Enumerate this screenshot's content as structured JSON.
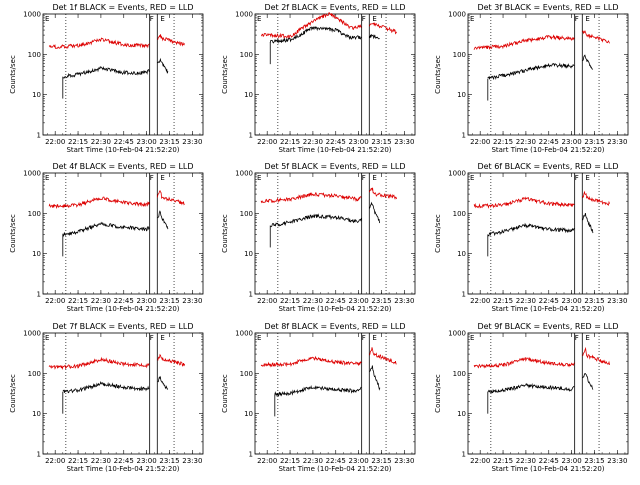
{
  "figure": {
    "xlabel": "Start Time (10-Feb-04 21:52:20)",
    "ylabel": "Counts/sec",
    "colors": {
      "events": "#000000",
      "lld": "#dd0000",
      "axes": "#000000"
    }
  },
  "chart_data": [
    {
      "type": "line",
      "title": "Det 1f BLACK = Events, RED = LLD",
      "xlabel": "Start Time (10-Feb-04 21:52:20)",
      "ylabel": "Counts/sec",
      "x_tick_labels": [
        "22:00",
        "22:15",
        "22:30",
        "22:45",
        "23:00",
        "23:15",
        "23:30"
      ],
      "y_tick_labels": [
        "1",
        "10",
        "100",
        "1000"
      ],
      "y_scale": "log",
      "ylim": [
        1,
        1000
      ],
      "annotations": [
        "E",
        "F",
        "E"
      ],
      "series": [
        {
          "name": "BLACK = Events",
          "color": "#000000",
          "x": [
            "22:05",
            "22:15",
            "22:30",
            "22:45",
            "23:00",
            "23:06",
            "23:09",
            "23:10",
            "23:14"
          ],
          "y": [
            28,
            32,
            45,
            35,
            35,
            50,
            70,
            60,
            35
          ]
        },
        {
          "name": "RED = LLD",
          "color": "#dd0000",
          "x": [
            "21:56",
            "22:15",
            "22:30",
            "22:45",
            "23:00",
            "23:06",
            "23:09",
            "23:10",
            "23:25"
          ],
          "y": [
            150,
            165,
            230,
            175,
            160,
            200,
            290,
            250,
            175
          ]
        }
      ]
    },
    {
      "type": "line",
      "title": "Det 2f BLACK = Events, RED = LLD",
      "xlabel": "Start Time (10-Feb-04 21:52:20)",
      "ylabel": "Counts/sec",
      "x_tick_labels": [
        "22:00",
        "22:15",
        "22:30",
        "22:45",
        "23:00",
        "23:15",
        "23:30"
      ],
      "y_tick_labels": [
        "1",
        "10",
        "100",
        "1000"
      ],
      "y_scale": "log",
      "ylim": [
        1,
        1000
      ],
      "annotations": [
        "E",
        "F",
        "E"
      ],
      "series": [
        {
          "name": "BLACK = Events",
          "color": "#000000",
          "x": [
            "22:02",
            "22:15",
            "22:30",
            "22:45",
            "22:55",
            "23:06",
            "23:09",
            "23:10",
            "23:14"
          ],
          "y": [
            200,
            230,
            450,
            400,
            260,
            270,
            290,
            280,
            250
          ]
        },
        {
          "name": "RED = LLD",
          "color": "#dd0000",
          "x": [
            "21:56",
            "22:15",
            "22:30",
            "22:40",
            "22:45",
            "22:55",
            "23:06",
            "23:09",
            "23:25"
          ],
          "y": [
            300,
            280,
            650,
            1000,
            850,
            450,
            500,
            600,
            350
          ]
        }
      ]
    },
    {
      "type": "line",
      "title": "Det 3f BLACK = Events, RED = LLD",
      "xlabel": "Start Time (10-Feb-04 21:52:20)",
      "ylabel": "Counts/sec",
      "x_tick_labels": [
        "22:00",
        "22:15",
        "22:30",
        "22:45",
        "23:00",
        "23:15",
        "23:30"
      ],
      "y_tick_labels": [
        "1",
        "10",
        "100",
        "1000"
      ],
      "y_scale": "log",
      "ylim": [
        1,
        1000
      ],
      "annotations": [
        "E",
        "F",
        "E"
      ],
      "series": [
        {
          "name": "BLACK = Events",
          "color": "#000000",
          "x": [
            "22:05",
            "22:15",
            "22:30",
            "22:45",
            "23:00",
            "23:06",
            "23:09",
            "23:10",
            "23:14"
          ],
          "y": [
            25,
            30,
            40,
            55,
            50,
            65,
            90,
            70,
            45
          ]
        },
        {
          "name": "RED = LLD",
          "color": "#dd0000",
          "x": [
            "21:56",
            "22:15",
            "22:30",
            "22:45",
            "23:00",
            "23:06",
            "23:09",
            "23:10",
            "23:25"
          ],
          "y": [
            140,
            160,
            220,
            270,
            240,
            320,
            400,
            300,
            200
          ]
        }
      ]
    },
    {
      "type": "line",
      "title": "Det 4f BLACK = Events, RED = LLD",
      "xlabel": "Start Time (10-Feb-04 21:52:20)",
      "ylabel": "Counts/sec",
      "x_tick_labels": [
        "22:00",
        "22:15",
        "22:30",
        "22:45",
        "23:00",
        "23:15",
        "23:30"
      ],
      "y_tick_labels": [
        "1",
        "10",
        "100",
        "1000"
      ],
      "y_scale": "log",
      "ylim": [
        1,
        1000
      ],
      "annotations": [
        "E",
        "F",
        "E"
      ],
      "series": [
        {
          "name": "BLACK = Events",
          "color": "#000000",
          "x": [
            "22:05",
            "22:15",
            "22:30",
            "22:45",
            "23:00",
            "23:06",
            "23:09",
            "23:10",
            "23:14"
          ],
          "y": [
            30,
            35,
            55,
            45,
            40,
            60,
            110,
            80,
            40
          ]
        },
        {
          "name": "RED = LLD",
          "color": "#dd0000",
          "x": [
            "21:56",
            "22:15",
            "22:30",
            "22:45",
            "23:00",
            "23:06",
            "23:09",
            "23:10",
            "23:25"
          ],
          "y": [
            150,
            160,
            240,
            185,
            160,
            220,
            350,
            250,
            175
          ]
        }
      ]
    },
    {
      "type": "line",
      "title": "Det 5f BLACK = Events, RED = LLD",
      "xlabel": "Start Time (10-Feb-04 21:52:20)",
      "ylabel": "Counts/sec",
      "x_tick_labels": [
        "22:00",
        "22:15",
        "22:30",
        "22:45",
        "23:00",
        "23:15",
        "23:30"
      ],
      "y_tick_labels": [
        "1",
        "10",
        "100",
        "1000"
      ],
      "y_scale": "log",
      "ylim": [
        1,
        1000
      ],
      "annotations": [
        "E",
        "F",
        "E"
      ],
      "series": [
        {
          "name": "BLACK = Events",
          "color": "#000000",
          "x": [
            "22:02",
            "22:15",
            "22:30",
            "22:45",
            "23:00",
            "23:06",
            "23:09",
            "23:10",
            "23:14"
          ],
          "y": [
            50,
            60,
            85,
            80,
            60,
            110,
            180,
            120,
            60
          ]
        },
        {
          "name": "RED = LLD",
          "color": "#dd0000",
          "x": [
            "21:56",
            "22:15",
            "22:30",
            "22:45",
            "23:00",
            "23:06",
            "23:09",
            "23:10",
            "23:25"
          ],
          "y": [
            200,
            220,
            300,
            270,
            220,
            300,
            420,
            300,
            250
          ]
        }
      ]
    },
    {
      "type": "line",
      "title": "Det 6f BLACK = Events, RED = LLD",
      "xlabel": "Start Time (10-Feb-04 21:52:20)",
      "ylabel": "Counts/sec",
      "x_tick_labels": [
        "22:00",
        "22:15",
        "22:30",
        "22:45",
        "23:00",
        "23:15",
        "23:30"
      ],
      "y_tick_labels": [
        "1",
        "10",
        "100",
        "1000"
      ],
      "y_scale": "log",
      "ylim": [
        1,
        1000
      ],
      "annotations": [
        "E",
        "F",
        "E"
      ],
      "series": [
        {
          "name": "BLACK = Events",
          "color": "#000000",
          "x": [
            "22:05",
            "22:15",
            "22:30",
            "22:45",
            "23:00",
            "23:06",
            "23:09",
            "23:10",
            "23:14"
          ],
          "y": [
            30,
            35,
            50,
            40,
            38,
            55,
            100,
            70,
            35
          ]
        },
        {
          "name": "RED = LLD",
          "color": "#dd0000",
          "x": [
            "21:56",
            "22:15",
            "22:30",
            "22:45",
            "23:00",
            "23:06",
            "23:09",
            "23:10",
            "23:25"
          ],
          "y": [
            150,
            160,
            230,
            175,
            160,
            220,
            330,
            240,
            170
          ]
        }
      ]
    },
    {
      "type": "line",
      "title": "Det 7f BLACK = Events, RED = LLD",
      "xlabel": "Start Time (10-Feb-04 21:52:20)",
      "ylabel": "Counts/sec",
      "x_tick_labels": [
        "22:00",
        "22:15",
        "22:30",
        "22:45",
        "23:00",
        "23:15",
        "23:30"
      ],
      "y_tick_labels": [
        "1",
        "10",
        "100",
        "1000"
      ],
      "y_scale": "log",
      "ylim": [
        1,
        1000
      ],
      "annotations": [
        "E",
        "F",
        "E"
      ],
      "series": [
        {
          "name": "BLACK = Events",
          "color": "#000000",
          "x": [
            "22:05",
            "22:15",
            "22:30",
            "22:45",
            "23:00",
            "23:06",
            "23:09",
            "23:10",
            "23:14"
          ],
          "y": [
            35,
            38,
            55,
            45,
            40,
            55,
            80,
            60,
            40
          ]
        },
        {
          "name": "RED = LLD",
          "color": "#dd0000",
          "x": [
            "21:56",
            "22:15",
            "22:30",
            "22:45",
            "23:00",
            "23:06",
            "23:09",
            "23:10",
            "23:25"
          ],
          "y": [
            140,
            150,
            220,
            170,
            155,
            200,
            280,
            230,
            165
          ]
        }
      ]
    },
    {
      "type": "line",
      "title": "Det 8f BLACK = Events, RED = LLD",
      "xlabel": "Start Time (10-Feb-04 21:52:20)",
      "ylabel": "Counts/sec",
      "x_tick_labels": [
        "22:00",
        "22:15",
        "22:30",
        "22:45",
        "23:00",
        "23:15",
        "23:30"
      ],
      "y_tick_labels": [
        "1",
        "10",
        "100",
        "1000"
      ],
      "y_scale": "log",
      "ylim": [
        1,
        1000
      ],
      "annotations": [
        "E",
        "F",
        "E"
      ],
      "series": [
        {
          "name": "BLACK = Events",
          "color": "#000000",
          "x": [
            "22:05",
            "22:15",
            "22:30",
            "22:45",
            "23:00",
            "23:06",
            "23:09",
            "23:10",
            "23:14"
          ],
          "y": [
            30,
            32,
            45,
            40,
            36,
            80,
            150,
            100,
            40
          ]
        },
        {
          "name": "RED = LLD",
          "color": "#dd0000",
          "x": [
            "21:56",
            "22:15",
            "22:30",
            "22:45",
            "23:00",
            "23:06",
            "23:09",
            "23:10",
            "23:25"
          ],
          "y": [
            160,
            170,
            240,
            190,
            170,
            250,
            420,
            300,
            180
          ]
        }
      ]
    },
    {
      "type": "line",
      "title": "Det 9f BLACK = Events, RED = LLD",
      "xlabel": "Start Time (10-Feb-04 21:52:20)",
      "ylabel": "Counts/sec",
      "x_tick_labels": [
        "22:00",
        "22:15",
        "22:30",
        "22:45",
        "23:00",
        "23:15",
        "23:30"
      ],
      "y_tick_labels": [
        "1",
        "10",
        "100",
        "1000"
      ],
      "y_scale": "log",
      "ylim": [
        1,
        1000
      ],
      "annotations": [
        "E",
        "F",
        "E"
      ],
      "series": [
        {
          "name": "BLACK = Events",
          "color": "#000000",
          "x": [
            "22:05",
            "22:15",
            "22:30",
            "22:45",
            "23:00",
            "23:06",
            "23:09",
            "23:10",
            "23:14"
          ],
          "y": [
            35,
            38,
            50,
            45,
            40,
            60,
            110,
            80,
            40
          ]
        },
        {
          "name": "RED = LLD",
          "color": "#dd0000",
          "x": [
            "21:56",
            "22:15",
            "22:30",
            "22:45",
            "23:00",
            "23:06",
            "23:09",
            "23:10",
            "23:25"
          ],
          "y": [
            150,
            160,
            230,
            180,
            160,
            230,
            400,
            280,
            170
          ]
        }
      ]
    }
  ]
}
